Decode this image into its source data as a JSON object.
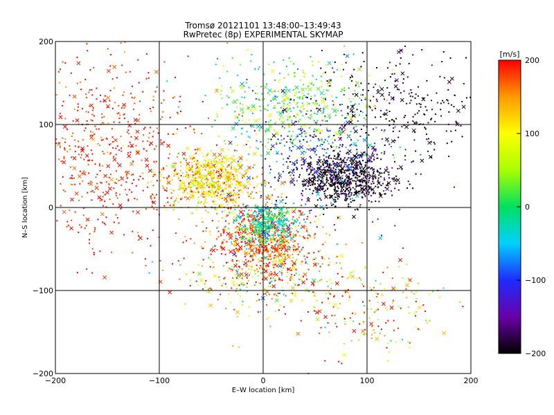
{
  "chart_data": {
    "type": "scatter",
    "title_lines": [
      "Tromsø 20121101 13:48:00–13:49:43",
      "RwPretec (8p) EXPERIMENTAL SKYMAP"
    ],
    "xlabel": "E–W location [km]",
    "ylabel": "N–S location [km]",
    "xlim": [
      -200,
      200
    ],
    "ylim": [
      -200,
      200
    ],
    "x_ticks": [
      -200,
      -100,
      0,
      100,
      200
    ],
    "y_ticks": [
      -200,
      -100,
      0,
      100,
      200
    ],
    "x_tick_labels": [
      "−200",
      "−100",
      "0",
      "100",
      "200"
    ],
    "y_tick_labels": [
      "−200",
      "−100",
      "0",
      "100",
      "200"
    ],
    "grid": true,
    "colorbar": {
      "label": "[m/s]",
      "range": [
        -200,
        200
      ],
      "ticks": [
        -200,
        -100,
        0,
        100,
        200
      ],
      "tick_labels": [
        "−200",
        "−100",
        "0",
        "100",
        "200"
      ],
      "colors": [
        "#000000",
        "#6a00a8",
        "#1e2bff",
        "#00d0ff",
        "#00e060",
        "#a8ff00",
        "#ffff00",
        "#ff9a00",
        "#ff0000"
      ]
    },
    "markers": {
      "small": "dot",
      "large": "x"
    },
    "clusters": [
      {
        "cx": -50,
        "cy": 35,
        "sx": 22,
        "sy": 18,
        "v": 120,
        "vs": 40,
        "n": 700
      },
      {
        "cx": 0,
        "cy": -40,
        "sx": 25,
        "sy": 22,
        "v": 180,
        "vs": 40,
        "n": 700
      },
      {
        "cx": 5,
        "cy": -20,
        "sx": 15,
        "sy": 12,
        "v": -20,
        "vs": 40,
        "n": 400
      },
      {
        "cx": 80,
        "cy": 35,
        "sx": 22,
        "sy": 15,
        "v": -200,
        "vs": 20,
        "n": 700
      },
      {
        "cx": 60,
        "cy": 60,
        "sx": 35,
        "sy": 30,
        "v": -120,
        "vs": 40,
        "n": 300
      },
      {
        "cx": 30,
        "cy": 120,
        "sx": 40,
        "sy": 30,
        "v": 20,
        "vs": 50,
        "n": 500
      },
      {
        "cx": -150,
        "cy": 70,
        "sx": 40,
        "sy": 60,
        "v": 190,
        "vs": 20,
        "n": 600
      },
      {
        "cx": 130,
        "cy": 120,
        "sx": 45,
        "sy": 35,
        "v": -190,
        "vs": 20,
        "n": 300
      },
      {
        "cx": 100,
        "cy": -120,
        "sx": 40,
        "sy": 30,
        "v": 150,
        "vs": 80,
        "n": 200
      },
      {
        "cx": 0,
        "cy": -80,
        "sx": 40,
        "sy": 25,
        "v": 100,
        "vs": 100,
        "n": 300
      }
    ]
  }
}
